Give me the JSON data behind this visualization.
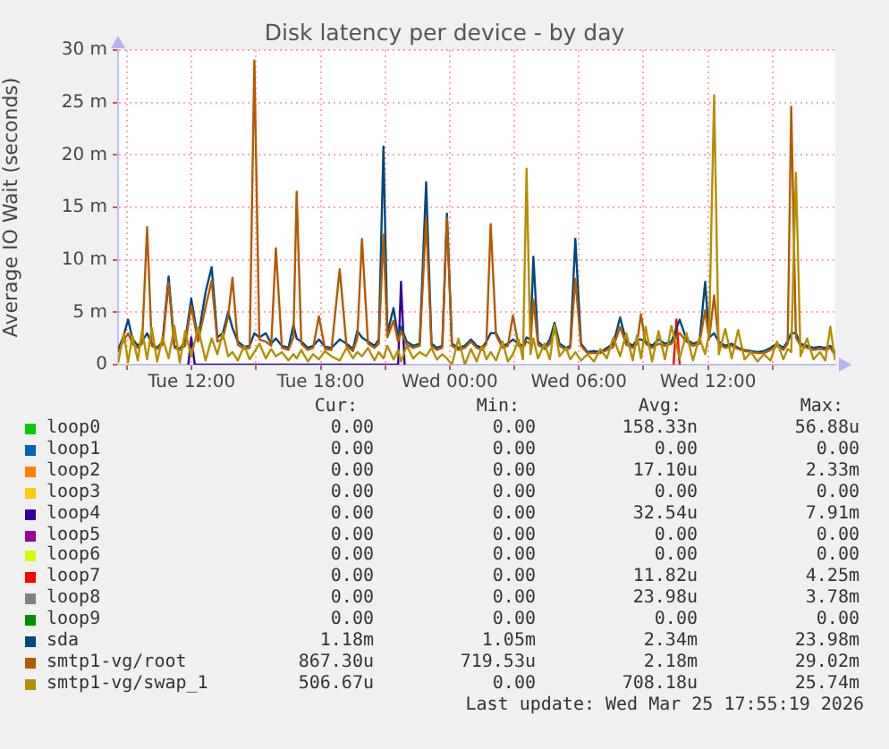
{
  "chart_data": {
    "type": "line",
    "title": "Disk latency per device - by day",
    "ylabel": "Average IO Wait (seconds)",
    "xlim": [
      "2026-03-24T08:35",
      "2026-03-25T17:55"
    ],
    "xticks": [
      {
        "value": "2026-03-24T09:00",
        "label": null
      },
      {
        "value": "2026-03-24T12:00",
        "label": "Tue 12:00"
      },
      {
        "value": "2026-03-24T15:00",
        "label": null
      },
      {
        "value": "2026-03-24T18:00",
        "label": "Tue 18:00"
      },
      {
        "value": "2026-03-24T21:00",
        "label": null
      },
      {
        "value": "2026-03-25T00:00",
        "label": "Wed 00:00"
      },
      {
        "value": "2026-03-25T03:00",
        "label": null
      },
      {
        "value": "2026-03-25T06:00",
        "label": "Wed 06:00"
      },
      {
        "value": "2026-03-25T09:00",
        "label": null
      },
      {
        "value": "2026-03-25T12:00",
        "label": "Wed 12:00"
      },
      {
        "value": "2026-03-25T15:00",
        "label": null
      }
    ],
    "ylim": [
      0,
      30
    ],
    "yticks": [
      0,
      {
        "value": 5,
        "label": "5 m"
      },
      {
        "value": 10,
        "label": "10 m"
      },
      {
        "value": 15,
        "label": "15 m"
      },
      {
        "value": 20,
        "label": "20 m"
      },
      {
        "value": 25,
        "label": "25 m"
      },
      {
        "value": 30,
        "label": "30 m"
      }
    ],
    "grid": true,
    "legend": "bottom",
    "x": [
      "2026-03-24T08:36",
      "2026-03-24T08:51",
      "2026-03-24T09:03",
      "2026-03-24T09:15",
      "2026-03-24T09:30",
      "2026-03-24T09:42",
      "2026-03-24T09:56",
      "2026-03-24T10:09",
      "2026-03-24T10:24",
      "2026-03-24T10:39",
      "2026-03-24T10:56",
      "2026-03-24T11:12",
      "2026-03-24T11:27",
      "2026-03-24T11:42",
      "2026-03-24T11:59",
      "2026-03-24T12:18",
      "2026-03-24T12:39",
      "2026-03-24T12:56",
      "2026-03-24T13:12",
      "2026-03-24T13:27",
      "2026-03-24T13:42",
      "2026-03-24T13:54",
      "2026-03-24T14:09",
      "2026-03-24T14:27",
      "2026-03-24T14:42",
      "2026-03-24T14:55",
      "2026-03-24T15:09",
      "2026-03-24T15:27",
      "2026-03-24T15:42",
      "2026-03-24T15:55",
      "2026-03-24T16:12",
      "2026-03-24T16:30",
      "2026-03-24T16:44",
      "2026-03-24T16:53",
      "2026-03-24T17:06",
      "2026-03-24T17:24",
      "2026-03-24T17:39",
      "2026-03-24T17:55",
      "2026-03-24T18:12",
      "2026-03-24T18:30",
      "2026-03-24T18:53",
      "2026-03-24T19:12",
      "2026-03-24T19:30",
      "2026-03-24T19:42",
      "2026-03-24T19:55",
      "2026-03-24T20:12",
      "2026-03-24T20:30",
      "2026-03-24T20:42",
      "2026-03-24T20:55",
      "2026-03-24T21:06",
      "2026-03-24T21:23",
      "2026-03-24T21:36",
      "2026-03-24T21:44",
      "2026-03-24T22:00",
      "2026-03-24T22:18",
      "2026-03-24T22:36",
      "2026-03-24T22:54",
      "2026-03-24T23:09",
      "2026-03-24T23:24",
      "2026-03-24T23:39",
      "2026-03-24T23:52",
      "2026-03-25T00:06",
      "2026-03-25T00:24",
      "2026-03-25T00:42",
      "2026-03-25T00:59",
      "2026-03-25T01:15",
      "2026-03-25T01:30",
      "2026-03-25T01:42",
      "2026-03-25T01:54",
      "2026-03-25T02:09",
      "2026-03-25T02:27",
      "2026-03-25T02:42",
      "2026-03-25T02:56",
      "2026-03-25T03:12",
      "2026-03-25T03:24",
      "2026-03-25T03:34",
      "2026-03-25T03:45",
      "2026-03-25T03:53",
      "2026-03-25T04:06",
      "2026-03-25T04:24",
      "2026-03-25T04:39",
      "2026-03-25T04:52",
      "2026-03-25T05:06",
      "2026-03-25T05:24",
      "2026-03-25T05:36",
      "2026-03-25T05:50",
      "2026-03-25T06:06",
      "2026-03-25T06:24",
      "2026-03-25T06:42",
      "2026-03-25T07:00",
      "2026-03-25T07:18",
      "2026-03-25T07:36",
      "2026-03-25T07:55",
      "2026-03-25T08:12",
      "2026-03-25T08:30",
      "2026-03-25T08:42",
      "2026-03-25T08:53",
      "2026-03-25T09:06",
      "2026-03-25T09:24",
      "2026-03-25T09:42",
      "2026-03-25T10:00",
      "2026-03-25T10:18",
      "2026-03-25T10:41",
      "2026-03-25T11:00",
      "2026-03-25T11:18",
      "2026-03-25T11:36",
      "2026-03-25T11:52",
      "2026-03-25T12:03",
      "2026-03-25T12:17",
      "2026-03-25T12:30",
      "2026-03-25T12:48",
      "2026-03-25T13:06",
      "2026-03-25T13:24",
      "2026-03-25T13:42",
      "2026-03-25T14:00",
      "2026-03-25T14:18",
      "2026-03-25T14:36",
      "2026-03-25T14:54",
      "2026-03-25T15:12",
      "2026-03-25T15:30",
      "2026-03-25T15:42",
      "2026-03-25T15:52",
      "2026-03-25T16:05",
      "2026-03-25T16:18",
      "2026-03-25T16:36",
      "2026-03-25T16:54",
      "2026-03-25T17:12",
      "2026-03-25T17:27",
      "2026-03-25T17:41",
      "2026-03-25T17:54"
    ],
    "series": [
      {
        "name": "loop0",
        "color": "#00cc00",
        "values": [
          null,
          null,
          null,
          null,
          null,
          null,
          null,
          null,
          null,
          null,
          null,
          null,
          null,
          null,
          null,
          null,
          null,
          null,
          null,
          null,
          null,
          null,
          null,
          null,
          null,
          null,
          null,
          null,
          null,
          null,
          null,
          null,
          null,
          null,
          null,
          null,
          null,
          null,
          null,
          null,
          null,
          null,
          null,
          null,
          null,
          null,
          null,
          null,
          null,
          null,
          null,
          null,
          null,
          null,
          null,
          null,
          null,
          null,
          null,
          null,
          null,
          null,
          null,
          null,
          null,
          null,
          null,
          null,
          null,
          null,
          null,
          null,
          null,
          null,
          null,
          null,
          null,
          null,
          null,
          null,
          null,
          null,
          null,
          null,
          null,
          null,
          null,
          null,
          null,
          null,
          null,
          null,
          null,
          null,
          null,
          null,
          null,
          null,
          null,
          null,
          null,
          null,
          null,
          null,
          null,
          null,
          null,
          null,
          null,
          null,
          null,
          null,
          null,
          null,
          null,
          null,
          null,
          null,
          null,
          null,
          null,
          null,
          null,
          null,
          null,
          null,
          null,
          null,
          null,
          null
        ]
      },
      {
        "name": "loop1",
        "color": "#0066b3",
        "values": [
          null,
          null,
          null,
          null,
          null,
          null,
          null,
          null,
          null,
          null,
          null,
          null,
          null,
          null,
          null,
          null,
          null,
          null,
          null,
          null,
          null,
          null,
          null,
          null,
          null,
          null,
          null,
          null,
          null,
          null,
          null,
          null,
          null,
          null,
          null,
          null,
          null,
          null,
          null,
          null,
          null,
          null,
          null,
          null,
          null,
          null,
          null,
          null,
          null,
          null,
          null,
          null,
          null,
          null,
          null,
          null,
          null,
          null,
          null,
          null,
          null,
          null,
          null,
          null,
          null,
          null,
          null,
          null,
          null,
          null,
          null,
          null,
          null,
          null,
          null,
          null,
          null,
          null,
          null,
          null,
          null,
          null,
          null,
          null,
          null,
          null,
          null,
          null,
          null,
          null,
          null,
          null,
          null,
          null,
          null,
          null,
          null,
          null,
          null,
          null,
          null,
          null,
          null,
          null,
          null,
          null,
          null,
          null,
          null,
          null,
          null,
          null,
          null,
          null,
          null,
          null,
          null,
          null,
          null,
          null,
          null,
          null,
          null,
          null,
          null,
          null,
          null,
          null,
          null,
          null
        ]
      },
      {
        "name": "loop2",
        "color": "#ff8000",
        "values": [
          null,
          null,
          null,
          null,
          null,
          null,
          null,
          null,
          null,
          null,
          null,
          null,
          null,
          null,
          null,
          null,
          null,
          null,
          null,
          null,
          null,
          null,
          null,
          null,
          null,
          null,
          null,
          null,
          null,
          null,
          null,
          null,
          null,
          null,
          null,
          null,
          null,
          null,
          null,
          null,
          null,
          null,
          null,
          null,
          null,
          null,
          null,
          null,
          null,
          null,
          null,
          null,
          null,
          null,
          null,
          null,
          null,
          null,
          null,
          null,
          null,
          null,
          null,
          null,
          null,
          null,
          null,
          null,
          null,
          null,
          null,
          null,
          null,
          null,
          null,
          null,
          null,
          null,
          null,
          null,
          null,
          null,
          null,
          null,
          null,
          null,
          null,
          null,
          null,
          null,
          null,
          null,
          null,
          null,
          null,
          null,
          null,
          null,
          null,
          null,
          null,
          null,
          null,
          null,
          null,
          null,
          null,
          null,
          null,
          null,
          null,
          null,
          null,
          null,
          null,
          null,
          null,
          null,
          null,
          null,
          null,
          null,
          null,
          null,
          null,
          null,
          null,
          null,
          null,
          null
        ]
      },
      {
        "name": "loop3",
        "color": "#ffcc00",
        "values": [
          null,
          null,
          null,
          null,
          null,
          null,
          null,
          null,
          null,
          null,
          null,
          null,
          null,
          null,
          null,
          null,
          null,
          null,
          null,
          null,
          null,
          null,
          null,
          null,
          null,
          null,
          null,
          null,
          null,
          null,
          null,
          null,
          null,
          null,
          null,
          null,
          null,
          null,
          null,
          null,
          null,
          null,
          null,
          null,
          null,
          null,
          null,
          null,
          null,
          null,
          null,
          null,
          null,
          null,
          null,
          null,
          null,
          null,
          null,
          null,
          null,
          null,
          null,
          null,
          null,
          null,
          null,
          null,
          null,
          null,
          null,
          null,
          null,
          null,
          null,
          null,
          null,
          null,
          null,
          null,
          null,
          null,
          null,
          null,
          null,
          null,
          null,
          null,
          null,
          null,
          null,
          null,
          null,
          null,
          null,
          null,
          null,
          null,
          null,
          null,
          null,
          null,
          null,
          null,
          null,
          null,
          null,
          null,
          null,
          null,
          null,
          null,
          null,
          null,
          null,
          null,
          null,
          null,
          null,
          null,
          null,
          null,
          null,
          null,
          null,
          null,
          null,
          null,
          null,
          null
        ]
      },
      {
        "name": "loop4",
        "color": "#330099",
        "x": [
          "2026-03-24T11:51",
          "2026-03-24T11:59",
          "2026-03-24T12:09",
          "2026-03-24T21:36",
          "2026-03-24T21:44",
          "2026-03-24T21:54"
        ],
        "values": [
          0,
          2.6,
          0,
          0,
          7.9,
          0
        ]
      },
      {
        "name": "loop5",
        "color": "#990099",
        "values": [
          null,
          null,
          null,
          null,
          null,
          null,
          null,
          null,
          null,
          null,
          null,
          null,
          null,
          null,
          null,
          null,
          null,
          null,
          null,
          null,
          null,
          null,
          null,
          null,
          null,
          null,
          null,
          null,
          null,
          null,
          null,
          null,
          null,
          null,
          null,
          null,
          null,
          null,
          null,
          null,
          null,
          null,
          null,
          null,
          null,
          null,
          null,
          null,
          null,
          null,
          null,
          null,
          null,
          null,
          null,
          null,
          null,
          null,
          null,
          null,
          null,
          null,
          null,
          null,
          null,
          null,
          null,
          null,
          null,
          null,
          null,
          null,
          null,
          null,
          null,
          null,
          null,
          null,
          null,
          null,
          null,
          null,
          null,
          null,
          null,
          null,
          null,
          null,
          null,
          null,
          null,
          null,
          null,
          null,
          null,
          null,
          null,
          null,
          null,
          null,
          null,
          null,
          null,
          null,
          null,
          null,
          null,
          null,
          null,
          null,
          null,
          null,
          null,
          null,
          null,
          null,
          null,
          null,
          null,
          null,
          null,
          null,
          null,
          null,
          null,
          null,
          null,
          null,
          null,
          null
        ]
      },
      {
        "name": "loop6",
        "color": "#ccff00",
        "values": [
          null,
          null,
          null,
          null,
          null,
          null,
          null,
          null,
          null,
          null,
          null,
          null,
          null,
          null,
          null,
          null,
          null,
          null,
          null,
          null,
          null,
          null,
          null,
          null,
          null,
          null,
          null,
          null,
          null,
          null,
          null,
          null,
          null,
          null,
          null,
          null,
          null,
          null,
          null,
          null,
          null,
          null,
          null,
          null,
          null,
          null,
          null,
          null,
          null,
          null,
          null,
          null,
          null,
          null,
          null,
          null,
          null,
          null,
          null,
          null,
          null,
          null,
          null,
          null,
          null,
          null,
          null,
          null,
          null,
          null,
          null,
          null,
          null,
          null,
          null,
          null,
          null,
          null,
          null,
          null,
          null,
          null,
          null,
          null,
          null,
          null,
          null,
          null,
          null,
          null,
          null,
          null,
          null,
          null,
          null,
          null,
          null,
          null,
          null,
          null,
          null,
          null,
          null,
          null,
          null,
          null,
          null,
          null,
          null,
          null,
          null,
          null,
          null,
          null,
          null,
          null,
          null,
          null,
          null,
          null,
          null,
          null,
          null,
          null,
          null,
          null,
          null,
          null,
          null,
          null
        ]
      },
      {
        "name": "loop7",
        "color": "#ff0000",
        "x": [
          "2026-03-25T10:24",
          "2026-03-25T10:32",
          "2026-03-25T10:41"
        ],
        "values": [
          0,
          4.3,
          0
        ]
      },
      {
        "name": "loop8",
        "color": "#808080",
        "values": [
          null,
          null,
          null,
          null,
          null,
          null,
          null,
          null,
          null,
          null,
          null,
          null,
          null,
          null,
          null,
          null,
          null,
          null,
          null,
          null,
          null,
          null,
          null,
          null,
          null,
          null,
          null,
          null,
          null,
          null,
          null,
          null,
          null,
          null,
          null,
          null,
          null,
          null,
          null,
          null,
          null,
          null,
          null,
          null,
          null,
          null,
          null,
          null,
          null,
          null,
          null,
          null,
          null,
          null,
          null,
          null,
          null,
          null,
          null,
          null,
          null,
          null,
          null,
          null,
          null,
          null,
          null,
          null,
          null,
          null,
          null,
          null,
          null,
          null,
          null,
          null,
          null,
          null,
          null,
          null,
          null,
          null,
          null,
          null,
          null,
          null,
          null,
          null,
          null,
          null,
          null,
          null,
          null,
          null,
          null,
          null,
          null,
          null,
          null,
          null,
          null,
          null,
          null,
          null,
          null,
          null,
          null,
          null,
          null,
          null,
          null,
          null,
          null,
          null,
          null,
          null,
          null,
          null,
          null,
          null,
          null,
          null,
          null,
          null,
          null,
          null,
          null,
          null,
          null,
          null
        ]
      },
      {
        "name": "loop9",
        "color": "#008f00",
        "values": [
          null,
          null,
          null,
          null,
          null,
          null,
          null,
          null,
          null,
          null,
          null,
          null,
          null,
          null,
          null,
          null,
          null,
          null,
          null,
          null,
          null,
          null,
          null,
          null,
          null,
          null,
          null,
          null,
          null,
          null,
          null,
          null,
          null,
          null,
          null,
          null,
          null,
          null,
          null,
          null,
          null,
          null,
          null,
          null,
          null,
          null,
          null,
          null,
          null,
          null,
          null,
          null,
          null,
          null,
          null,
          null,
          null,
          null,
          null,
          null,
          null,
          null,
          null,
          null,
          null,
          null,
          null,
          null,
          null,
          null,
          null,
          null,
          null,
          null,
          null,
          null,
          null,
          null,
          null,
          null,
          null,
          null,
          null,
          null,
          null,
          null,
          null,
          null,
          null,
          null,
          null,
          null,
          null,
          null,
          null,
          null,
          null,
          null,
          null,
          null,
          null,
          null,
          null,
          null,
          null,
          null,
          null,
          null,
          null,
          null,
          null,
          null,
          null,
          null,
          null,
          null,
          null,
          null,
          null,
          null,
          null,
          null,
          null,
          null,
          null,
          null,
          null,
          null,
          null,
          null
        ]
      },
      {
        "name": "sda",
        "color": "#00487d",
        "values": [
          1.5,
          2.8,
          4.3,
          2.5,
          1.8,
          2.2,
          3.0,
          2.0,
          1.6,
          2.2,
          8.4,
          1.8,
          1.5,
          2.2,
          6.3,
          2.5,
          6.9,
          9.3,
          2.6,
          3.0,
          5.0,
          3.5,
          2.2,
          1.7,
          1.8,
          3.0,
          2.6,
          3.0,
          2.0,
          2.5,
          1.8,
          1.6,
          3.8,
          2.5,
          2.2,
          1.6,
          1.8,
          2.4,
          1.7,
          1.6,
          2.4,
          2.0,
          1.5,
          3.2,
          2.6,
          2.2,
          1.8,
          2.4,
          20.8,
          3.0,
          5.4,
          2.6,
          3.6,
          2.2,
          1.8,
          2.0,
          17.4,
          2.0,
          1.6,
          1.8,
          14.4,
          2.0,
          1.6,
          1.8,
          2.4,
          1.8,
          1.6,
          2.2,
          3.0,
          3.0,
          1.8,
          2.0,
          2.4,
          2.0,
          1.8,
          2.6,
          2.4,
          10.3,
          2.2,
          1.6,
          2.4,
          4.0,
          2.0,
          1.6,
          1.8,
          12.0,
          2.0,
          1.2,
          1.3,
          1.2,
          1.6,
          2.0,
          4.5,
          2.2,
          1.8,
          2.4,
          2.4,
          2.2,
          1.8,
          2.4,
          2.0,
          2.2,
          4.3,
          2.4,
          2.0,
          2.2,
          7.9,
          2.6,
          3.0,
          2.2,
          1.8,
          2.0,
          1.6,
          1.4,
          1.3,
          1.2,
          1.3,
          1.6,
          2.0,
          1.6,
          2.2,
          3.0,
          3.0,
          2.0,
          1.8,
          1.6,
          1.7,
          1.6,
          1.8,
          1.2
        ]
      },
      {
        "name": "smtp1-vg/root",
        "color": "#b35a00",
        "values": [
          1.3,
          2.3,
          3.0,
          2.0,
          1.6,
          2.0,
          13.1,
          1.8,
          1.5,
          1.9,
          7.8,
          1.6,
          1.4,
          1.8,
          5.6,
          2.2,
          5.5,
          8.0,
          2.2,
          2.5,
          4.6,
          8.3,
          1.9,
          1.5,
          1.6,
          29.0,
          2.4,
          2.2,
          1.8,
          11.1,
          1.6,
          1.4,
          2.6,
          16.5,
          2.0,
          1.4,
          1.6,
          4.6,
          1.5,
          1.4,
          9.1,
          1.8,
          1.3,
          2.5,
          12.0,
          2.0,
          1.6,
          2.0,
          12.4,
          2.6,
          4.2,
          2.2,
          3.2,
          1.9,
          1.6,
          1.8,
          13.9,
          1.8,
          1.4,
          1.6,
          14.0,
          1.8,
          1.4,
          1.6,
          2.2,
          1.6,
          1.4,
          2.0,
          13.4,
          2.8,
          1.6,
          1.8,
          4.7,
          1.8,
          1.6,
          2.2,
          2.0,
          6.2,
          1.9,
          1.5,
          2.0,
          3.4,
          1.8,
          1.4,
          1.6,
          8.2,
          1.8,
          1.1,
          1.1,
          1.1,
          1.4,
          1.7,
          3.6,
          1.9,
          1.6,
          2.0,
          4.8,
          2.0,
          1.6,
          2.0,
          1.8,
          2.0,
          3.0,
          2.2,
          1.8,
          2.0,
          5.2,
          2.4,
          6.6,
          2.0,
          1.6,
          1.8,
          1.5,
          1.3,
          1.2,
          1.1,
          1.1,
          1.4,
          1.8,
          1.4,
          2.0,
          24.6,
          2.6,
          1.8,
          1.6,
          1.4,
          1.5,
          1.4,
          1.6,
          0.9
        ]
      },
      {
        "name": "smtp1-vg/swap_1",
        "color": "#b38f00",
        "values": [
          0.3,
          3.0,
          0.2,
          2.8,
          0.4,
          3.3,
          0.5,
          3.5,
          0.3,
          2.6,
          0.6,
          3.7,
          0.2,
          3.2,
          0.8,
          3.5,
          0.4,
          2.5,
          1.0,
          3.0,
          0.8,
          1.2,
          0.4,
          1.8,
          0.5,
          1.2,
          2.0,
          0.6,
          1.5,
          0.8,
          1.2,
          0.4,
          1.0,
          0.6,
          1.4,
          0.3,
          1.0,
          0.5,
          1.3,
          0.8,
          0.4,
          1.6,
          0.6,
          1.2,
          0.8,
          1.6,
          0.4,
          1.2,
          0.6,
          1.8,
          0.5,
          1.4,
          0.3,
          1.8,
          0.6,
          1.2,
          0.8,
          1.6,
          0.5,
          1.0,
          0.6,
          0,
          2.5,
          0,
          1.5,
          0.3,
          1.8,
          0.5,
          1.2,
          0.4,
          2.2,
          0.3,
          1.0,
          2.4,
          0.5,
          18.7,
          1.0,
          2.5,
          0.6,
          2.0,
          0.5,
          3.8,
          0.8,
          1.6,
          0.5,
          1.2,
          0.4,
          1.0,
          0.3,
          1.5,
          0.6,
          2.6,
          0.8,
          3.0,
          0.4,
          2.8,
          0.6,
          3.6,
          0.3,
          3.2,
          0.5,
          3.7,
          0.6,
          3.0,
          0.4,
          2.6,
          1.0,
          3.0,
          25.7,
          1.0,
          3.4,
          0.6,
          3.3,
          0.5,
          1.2,
          0.3,
          1.0,
          0.4,
          2.2,
          0.5,
          1.5,
          1.2,
          18.3,
          0.8,
          2.5,
          0.5,
          1.2,
          0.4,
          3.6,
          0.5
        ]
      }
    ],
    "annotations": [
      "Cur:",
      "Min:",
      "Avg:",
      "Max:",
      "0.00",
      "0.00",
      "158.33n",
      "56.88u",
      "0.00",
      "0.00",
      "0.00",
      "0.00",
      "0.00",
      "0.00",
      "17.10u",
      "2.33m",
      "0.00",
      "0.00",
      "0.00",
      "0.00",
      "0.00",
      "0.00",
      "32.54u",
      "7.91m",
      "0.00",
      "0.00",
      "0.00",
      "0.00",
      "0.00",
      "0.00",
      "0.00",
      "0.00",
      "0.00",
      "0.00",
      "11.82u",
      "4.25m",
      "0.00",
      "0.00",
      "23.98u",
      "3.78m",
      "0.00",
      "0.00",
      "0.00",
      "0.00",
      "1.18m",
      "1.05m",
      "2.34m",
      "23.98m",
      "867.30u",
      "719.53u",
      "2.18m",
      "29.02m",
      "506.67u",
      "0.00",
      "708.18u",
      "25.74m",
      "Last update: Wed Mar 25 17:55:19 2026"
    ]
  }
}
